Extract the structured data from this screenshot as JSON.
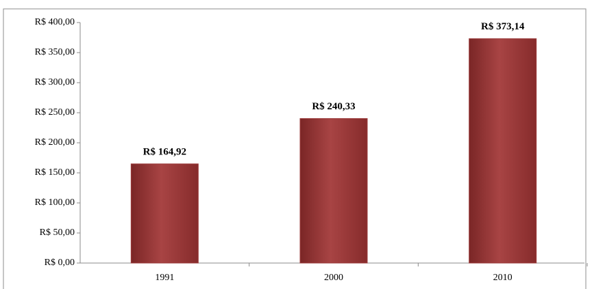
{
  "chart_data": {
    "type": "bar",
    "categories": [
      "1991",
      "2000",
      "2010"
    ],
    "values": [
      164.92,
      240.33,
      373.14
    ],
    "value_labels": [
      "R$ 164,92",
      "R$ 240,33",
      "R$ 373,14"
    ],
    "color": "#9b3b3b",
    "ylim": [
      0,
      400
    ],
    "yticks": [
      {
        "value": 0,
        "label": "R$ 0,00"
      },
      {
        "value": 50,
        "label": "R$ 50,00"
      },
      {
        "value": 100,
        "label": "R$ 100,00"
      },
      {
        "value": 150,
        "label": "R$ 150,00"
      },
      {
        "value": 200,
        "label": "R$ 200,00"
      },
      {
        "value": 250,
        "label": "R$ 250,00"
      },
      {
        "value": 300,
        "label": "R$ 300,00"
      },
      {
        "value": 350,
        "label": "R$ 350,00"
      },
      {
        "value": 400,
        "label": "R$ 400,00"
      }
    ],
    "grid": false
  }
}
